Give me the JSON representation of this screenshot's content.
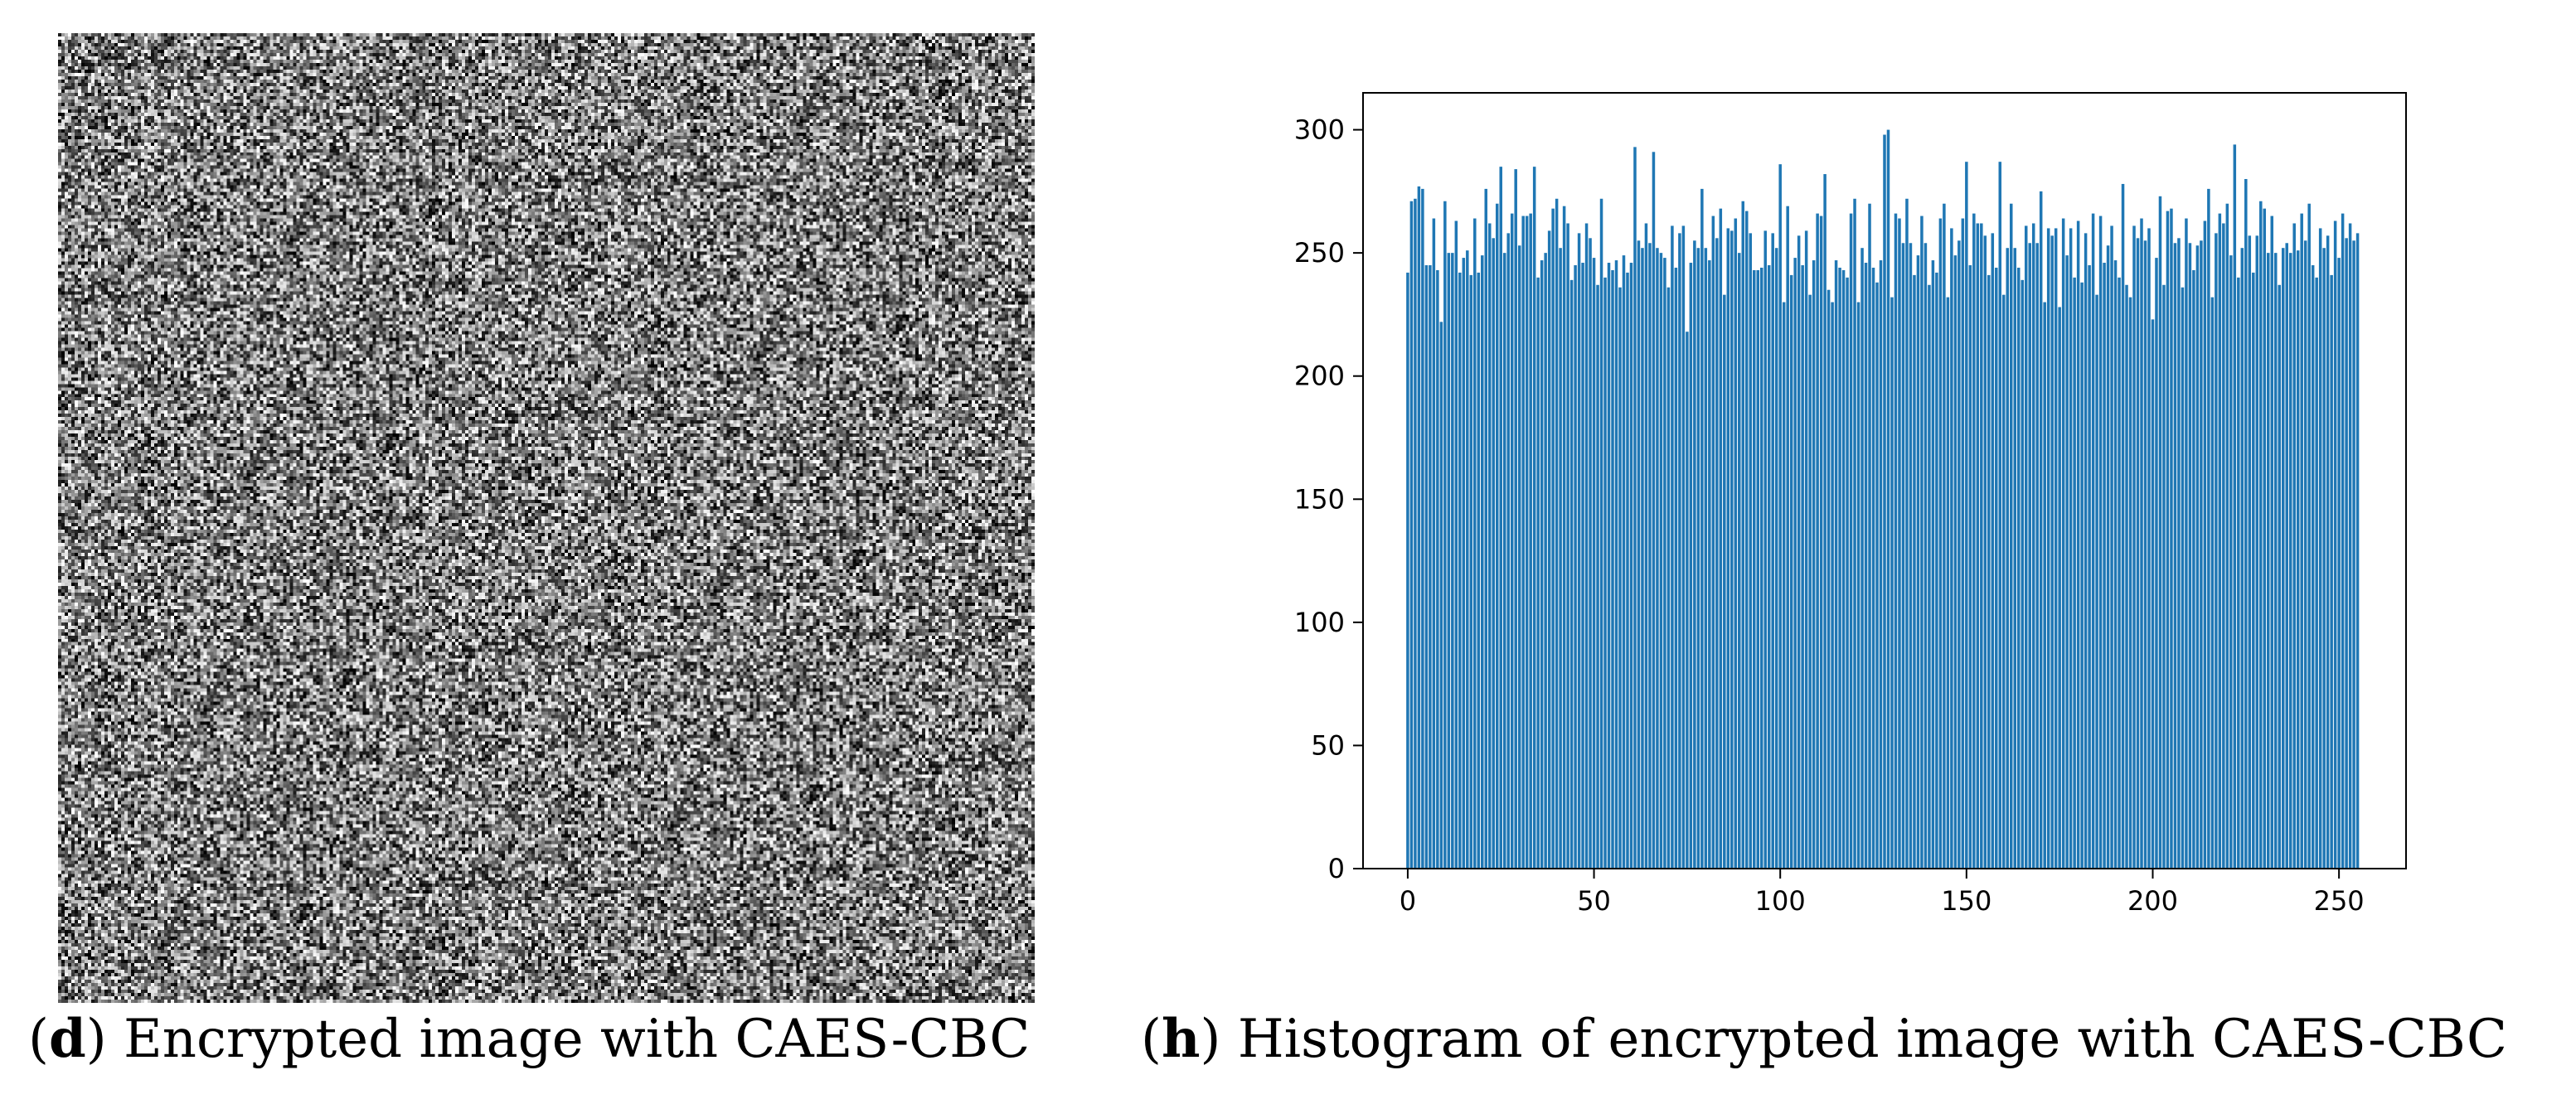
{
  "left_panel": {
    "caption_letter": "d",
    "caption_text": "Encrypted image with CAES-CBC",
    "image_desc": "random grayscale noise"
  },
  "right_panel": {
    "caption_letter": "h",
    "caption_text": "Histogram of encrypted image with CAES-CBC"
  },
  "chart_data": {
    "type": "bar",
    "title": "",
    "xlabel": "",
    "ylabel": "",
    "xlim": [
      -12,
      268
    ],
    "ylim": [
      0,
      315
    ],
    "xticks": [
      0,
      50,
      100,
      150,
      200,
      250
    ],
    "yticks": [
      0,
      50,
      100,
      150,
      200,
      250,
      300
    ],
    "bar_color": "#1f77b4",
    "grid": false,
    "legend": "none",
    "x_range": [
      0,
      255
    ],
    "values": [
      242,
      271,
      272,
      277,
      276,
      245,
      245,
      264,
      243,
      222,
      271,
      250,
      250,
      263,
      242,
      248,
      251,
      241,
      264,
      242,
      249,
      276,
      262,
      256,
      270,
      285,
      250,
      258,
      266,
      284,
      253,
      265,
      265,
      266,
      285,
      240,
      247,
      250,
      259,
      268,
      272,
      252,
      269,
      262,
      239,
      245,
      258,
      246,
      262,
      256,
      248,
      237,
      272,
      240,
      246,
      243,
      247,
      236,
      249,
      242,
      246,
      293,
      255,
      252,
      262,
      254,
      291,
      252,
      250,
      248,
      236,
      261,
      244,
      258,
      261,
      218,
      246,
      255,
      252,
      276,
      252,
      247,
      265,
      256,
      268,
      233,
      260,
      259,
      264,
      250,
      271,
      267,
      258,
      243,
      243,
      244,
      259,
      245,
      258,
      252,
      286,
      230,
      269,
      241,
      248,
      257,
      245,
      259,
      233,
      247,
      266,
      265,
      282,
      235,
      230,
      247,
      244,
      243,
      240,
      266,
      272,
      230,
      252,
      246,
      270,
      244,
      238,
      247,
      298,
      300,
      232,
      266,
      264,
      254,
      272,
      254,
      241,
      249,
      265,
      254,
      237,
      247,
      242,
      264,
      270,
      232,
      260,
      249,
      255,
      264,
      287,
      245,
      266,
      262,
      262,
      257,
      241,
      258,
      244,
      287,
      233,
      252,
      270,
      252,
      244,
      239,
      261,
      254,
      262,
      254,
      275,
      230,
      260,
      257,
      260,
      228,
      264,
      249,
      260,
      240,
      263,
      238,
      258,
      245,
      266,
      233,
      265,
      246,
      253,
      261,
      247,
      240,
      278,
      237,
      232,
      261,
      256,
      264,
      255,
      260,
      223,
      248,
      273,
      237,
      267,
      268,
      254,
      256,
      236,
      264,
      254,
      243,
      253,
      255,
      263,
      276,
      232,
      258,
      266,
      262,
      270,
      249,
      294,
      240,
      252,
      280,
      257,
      242,
      257,
      271,
      268,
      250,
      265,
      250,
      237,
      252,
      254,
      250,
      262,
      251,
      266,
      255,
      270,
      245,
      240,
      260,
      252,
      257,
      241,
      263,
      248,
      266,
      256,
      262,
      255,
      258
    ]
  }
}
